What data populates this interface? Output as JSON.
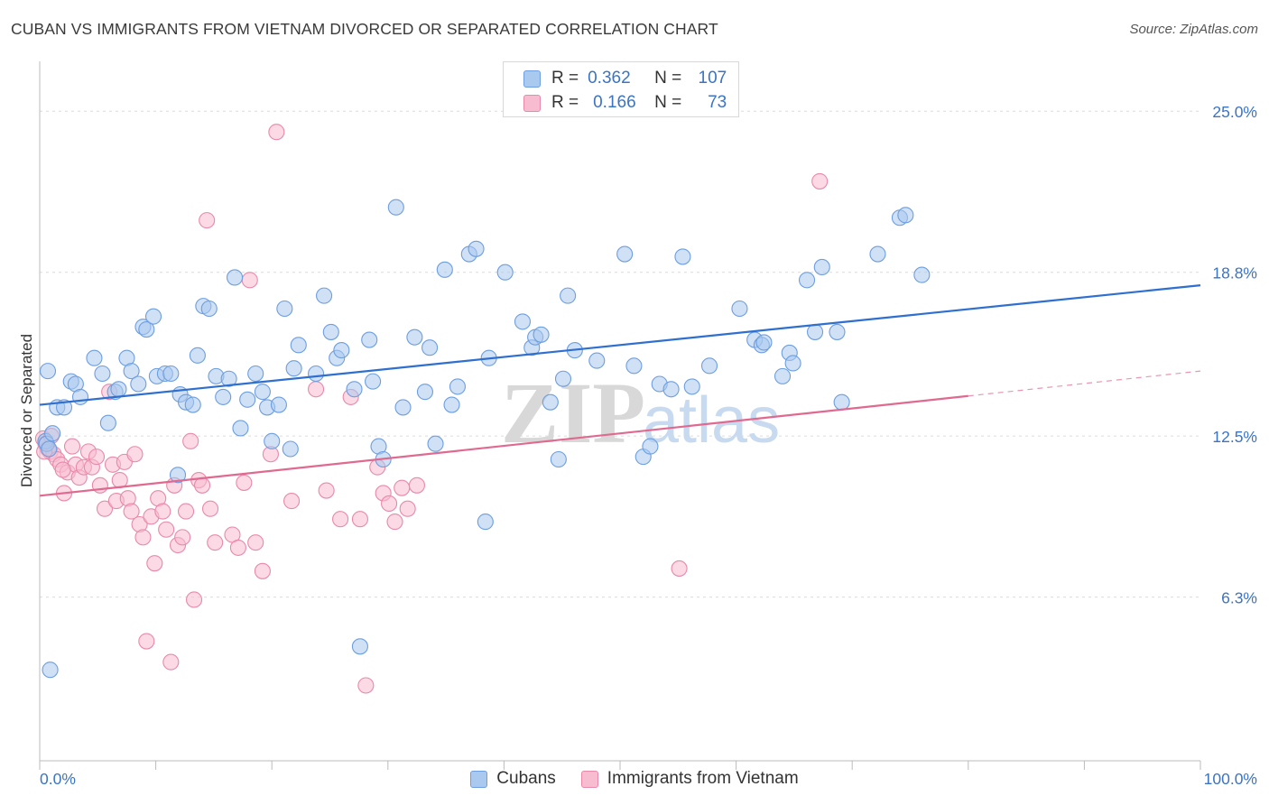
{
  "title": "CUBAN VS IMMIGRANTS FROM VIETNAM DIVORCED OR SEPARATED CORRELATION CHART",
  "source": "Source: ZipAtlas.com",
  "watermark": {
    "zip": "ZIP",
    "atlas": "atlas"
  },
  "legend_top": [
    {
      "r_label": "R =",
      "r_value": "0.362",
      "n_label": "N =",
      "n_value": "107",
      "color": "#aac9ef",
      "stroke": "#6c9ee0"
    },
    {
      "r_label": "R =",
      "r_value": "0.166",
      "n_label": "N =",
      "n_value": "73",
      "color": "#f7bcd0",
      "stroke": "#e889a9"
    }
  ],
  "chart_data": {
    "type": "scatter",
    "title": "CUBAN VS IMMIGRANTS FROM VIETNAM DIVORCED OR SEPARATED CORRELATION CHART",
    "xlabel": "",
    "ylabel": "Divorced or Separated",
    "xlim": [
      0,
      100
    ],
    "ylim": [
      0,
      26.5
    ],
    "x_tick_labels": [
      "0.0%",
      "100.0%"
    ],
    "y_ticks": [
      6.3,
      12.5,
      18.8,
      25.0
    ],
    "y_tick_labels": [
      "6.3%",
      "12.5%",
      "18.8%",
      "25.0%"
    ],
    "grid": true,
    "legend": "top-center and bottom",
    "series": [
      {
        "name": "Cubans",
        "color": "#aac9ef",
        "stroke": "#6c9ee0",
        "trend_color": "#2f6fcf",
        "trend": {
          "x": [
            0,
            100
          ],
          "y": [
            13.7,
            18.3
          ]
        },
        "points": [
          [
            0.5,
            12.3
          ],
          [
            0.6,
            12.2
          ],
          [
            1.1,
            12.6
          ],
          [
            0.8,
            12.0
          ],
          [
            1.5,
            13.6
          ],
          [
            2.1,
            13.6
          ],
          [
            2.7,
            14.6
          ],
          [
            3.1,
            14.5
          ],
          [
            3.5,
            14.0
          ],
          [
            4.7,
            15.5
          ],
          [
            5.4,
            14.9
          ],
          [
            5.9,
            13.0
          ],
          [
            6.5,
            14.2
          ],
          [
            6.8,
            14.3
          ],
          [
            7.5,
            15.5
          ],
          [
            7.9,
            15.0
          ],
          [
            8.5,
            14.5
          ],
          [
            8.9,
            16.7
          ],
          [
            9.2,
            16.6
          ],
          [
            9.8,
            17.1
          ],
          [
            10.1,
            14.8
          ],
          [
            10.8,
            14.9
          ],
          [
            11.3,
            14.9
          ],
          [
            11.9,
            11.0
          ],
          [
            12.1,
            14.1
          ],
          [
            12.6,
            13.8
          ],
          [
            13.2,
            13.7
          ],
          [
            13.6,
            15.6
          ],
          [
            14.1,
            17.5
          ],
          [
            14.6,
            17.4
          ],
          [
            15.2,
            14.8
          ],
          [
            15.8,
            14.0
          ],
          [
            16.3,
            14.7
          ],
          [
            16.8,
            18.6
          ],
          [
            17.3,
            12.8
          ],
          [
            17.9,
            13.9
          ],
          [
            18.6,
            14.9
          ],
          [
            19.2,
            14.2
          ],
          [
            19.6,
            13.6
          ],
          [
            20.0,
            12.3
          ],
          [
            20.6,
            13.7
          ],
          [
            21.1,
            17.4
          ],
          [
            21.6,
            12.0
          ],
          [
            21.9,
            15.1
          ],
          [
            22.3,
            16.0
          ],
          [
            23.8,
            14.9
          ],
          [
            24.5,
            17.9
          ],
          [
            25.1,
            16.5
          ],
          [
            25.6,
            15.5
          ],
          [
            26.0,
            15.8
          ],
          [
            27.1,
            14.3
          ],
          [
            27.6,
            4.4
          ],
          [
            28.4,
            16.2
          ],
          [
            28.7,
            14.6
          ],
          [
            29.2,
            12.1
          ],
          [
            29.6,
            11.6
          ],
          [
            30.7,
            21.3
          ],
          [
            31.3,
            13.6
          ],
          [
            32.3,
            16.3
          ],
          [
            33.2,
            14.2
          ],
          [
            33.6,
            15.9
          ],
          [
            34.1,
            12.2
          ],
          [
            34.9,
            18.9
          ],
          [
            35.5,
            13.7
          ],
          [
            36.0,
            14.4
          ],
          [
            37.0,
            19.5
          ],
          [
            37.6,
            19.7
          ],
          [
            38.4,
            9.2
          ],
          [
            38.7,
            15.5
          ],
          [
            40.1,
            18.8
          ],
          [
            41.6,
            16.9
          ],
          [
            42.4,
            15.9
          ],
          [
            42.7,
            16.3
          ],
          [
            43.2,
            16.4
          ],
          [
            44.0,
            13.8
          ],
          [
            44.7,
            11.6
          ],
          [
            45.1,
            14.7
          ],
          [
            45.5,
            17.9
          ],
          [
            46.1,
            15.8
          ],
          [
            48.0,
            15.4
          ],
          [
            50.4,
            19.5
          ],
          [
            51.2,
            15.2
          ],
          [
            52.0,
            11.7
          ],
          [
            52.6,
            12.1
          ],
          [
            53.4,
            14.5
          ],
          [
            54.4,
            14.3
          ],
          [
            55.4,
            19.4
          ],
          [
            56.2,
            14.4
          ],
          [
            57.7,
            15.2
          ],
          [
            60.3,
            17.4
          ],
          [
            61.6,
            16.2
          ],
          [
            62.2,
            16.0
          ],
          [
            62.4,
            16.1
          ],
          [
            64.0,
            14.8
          ],
          [
            64.6,
            15.7
          ],
          [
            64.9,
            15.3
          ],
          [
            66.1,
            18.5
          ],
          [
            66.8,
            16.5
          ],
          [
            67.4,
            19.0
          ],
          [
            68.7,
            16.5
          ],
          [
            69.1,
            13.8
          ],
          [
            72.2,
            19.5
          ],
          [
            74.1,
            20.9
          ],
          [
            74.6,
            21.0
          ],
          [
            76.0,
            18.7
          ],
          [
            0.9,
            3.5
          ],
          [
            0.7,
            15.0
          ]
        ]
      },
      {
        "name": "Immigrants from Vietnam",
        "color": "#f7bcd0",
        "stroke": "#e889a9",
        "trend_color": "#e0698f",
        "trend": {
          "x": [
            0,
            100
          ],
          "y": [
            10.2,
            15.0
          ]
        },
        "trend_solid_until": 80,
        "points": [
          [
            0.3,
            12.4
          ],
          [
            0.5,
            12.2
          ],
          [
            0.7,
            12.0
          ],
          [
            0.9,
            11.9
          ],
          [
            1.2,
            11.8
          ],
          [
            1.5,
            11.6
          ],
          [
            1.8,
            11.4
          ],
          [
            2.1,
            10.3
          ],
          [
            2.4,
            11.1
          ],
          [
            2.8,
            12.1
          ],
          [
            3.1,
            11.4
          ],
          [
            3.4,
            10.9
          ],
          [
            3.8,
            11.3
          ],
          [
            4.2,
            11.9
          ],
          [
            4.5,
            11.3
          ],
          [
            4.9,
            11.7
          ],
          [
            5.2,
            10.6
          ],
          [
            5.6,
            9.7
          ],
          [
            6.0,
            14.2
          ],
          [
            6.3,
            11.4
          ],
          [
            6.6,
            10.0
          ],
          [
            6.9,
            10.8
          ],
          [
            7.3,
            11.5
          ],
          [
            7.6,
            10.1
          ],
          [
            7.9,
            9.6
          ],
          [
            8.2,
            11.8
          ],
          [
            8.6,
            9.1
          ],
          [
            8.9,
            8.6
          ],
          [
            9.2,
            4.6
          ],
          [
            9.6,
            9.4
          ],
          [
            9.9,
            7.6
          ],
          [
            10.2,
            10.1
          ],
          [
            10.6,
            9.6
          ],
          [
            10.9,
            8.9
          ],
          [
            11.3,
            3.8
          ],
          [
            11.6,
            10.6
          ],
          [
            11.9,
            8.3
          ],
          [
            12.3,
            8.6
          ],
          [
            12.6,
            9.6
          ],
          [
            13.0,
            12.3
          ],
          [
            13.3,
            6.2
          ],
          [
            13.7,
            10.8
          ],
          [
            14.0,
            10.6
          ],
          [
            14.4,
            20.8
          ],
          [
            14.7,
            9.7
          ],
          [
            15.1,
            8.4
          ],
          [
            16.6,
            8.7
          ],
          [
            17.1,
            8.2
          ],
          [
            17.6,
            10.7
          ],
          [
            18.1,
            18.5
          ],
          [
            18.6,
            8.4
          ],
          [
            19.2,
            7.3
          ],
          [
            19.9,
            11.8
          ],
          [
            20.4,
            24.2
          ],
          [
            21.7,
            10.0
          ],
          [
            23.8,
            14.3
          ],
          [
            24.7,
            10.4
          ],
          [
            25.9,
            9.3
          ],
          [
            26.8,
            14.0
          ],
          [
            27.6,
            9.3
          ],
          [
            28.1,
            2.9
          ],
          [
            29.1,
            11.3
          ],
          [
            29.6,
            10.3
          ],
          [
            30.1,
            9.9
          ],
          [
            30.6,
            9.2
          ],
          [
            31.2,
            10.5
          ],
          [
            31.7,
            9.7
          ],
          [
            32.5,
            10.6
          ],
          [
            55.1,
            7.4
          ],
          [
            67.2,
            22.3
          ],
          [
            0.4,
            11.9
          ],
          [
            1.0,
            12.5
          ],
          [
            2.0,
            11.2
          ]
        ]
      }
    ]
  }
}
